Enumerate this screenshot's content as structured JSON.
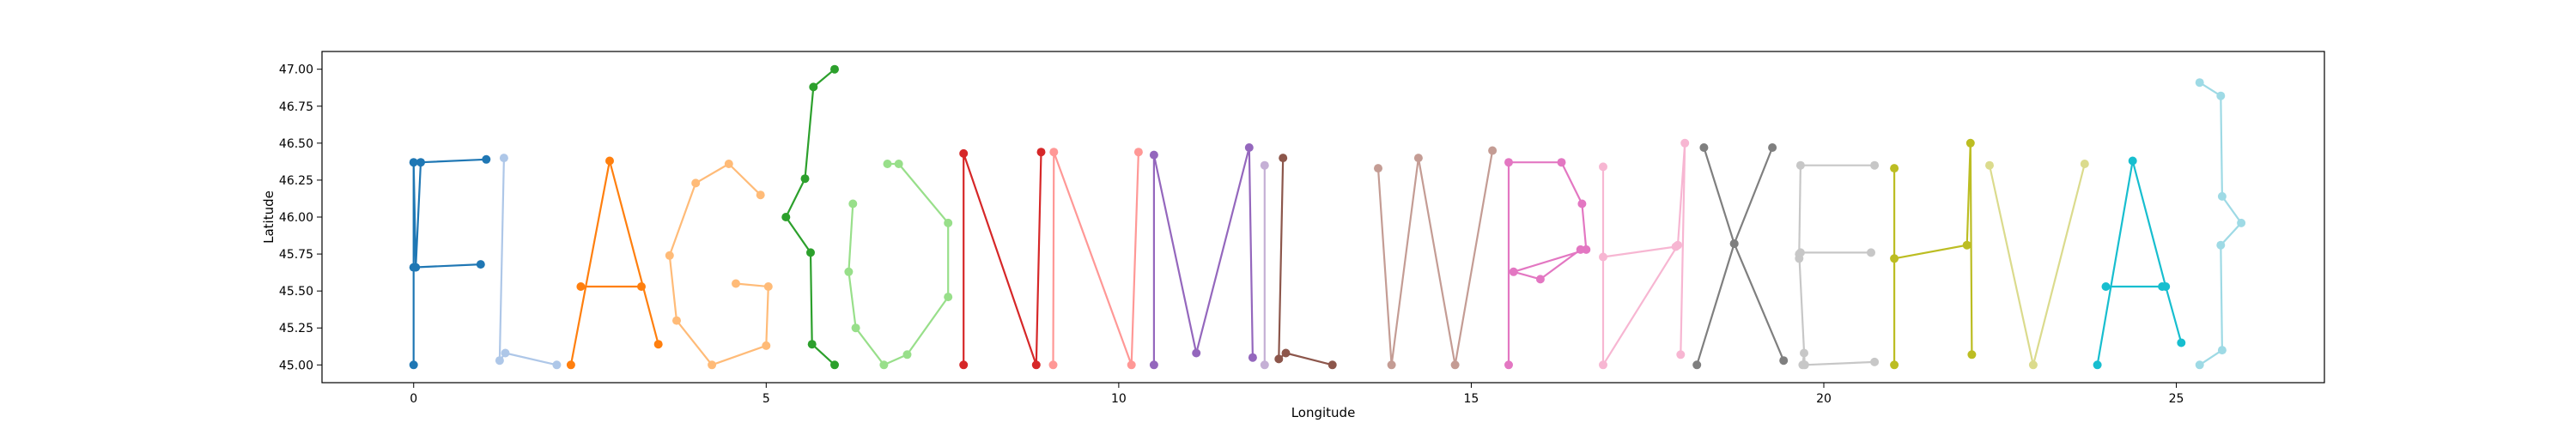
{
  "chart_data": {
    "type": "line",
    "title": "",
    "xlabel": "Longitude",
    "ylabel": "Latitude",
    "xlim": [
      -1.3,
      27.1
    ],
    "ylim": [
      44.88,
      47.12
    ],
    "xticks": [
      0,
      5,
      10,
      15,
      20,
      25
    ],
    "yticks": [
      45.0,
      45.25,
      45.5,
      45.75,
      46.0,
      46.25,
      46.5,
      46.75,
      47.0
    ],
    "grid": false,
    "legend": "none",
    "series": [
      {
        "color": "#1f77b4",
        "x": [
          0.0,
          0.0,
          0.03,
          0.1,
          1.03
        ],
        "y": [
          45.0,
          46.37,
          45.66,
          46.37,
          46.39
        ]
      },
      {
        "color": "#1f77b4",
        "x": [
          0.0,
          0.95
        ],
        "y": [
          45.66,
          45.68
        ]
      },
      {
        "color": "#aec7e8",
        "x": [
          1.28,
          1.22,
          1.3,
          2.03
        ],
        "y": [
          46.4,
          45.03,
          45.08,
          45.0
        ]
      },
      {
        "color": "#ff7f0e",
        "x": [
          2.23,
          2.78,
          3.47
        ],
        "y": [
          45.0,
          46.38,
          45.14
        ]
      },
      {
        "color": "#ff7f0e",
        "x": [
          2.37,
          3.23
        ],
        "y": [
          45.53,
          45.53
        ]
      },
      {
        "color": "#ffbb78",
        "x": [
          4.92,
          4.47,
          4.0,
          3.63,
          3.73,
          4.23,
          5.0,
          5.03,
          4.57
        ],
        "y": [
          46.15,
          46.36,
          46.23,
          45.74,
          45.3,
          45.0,
          45.13,
          45.53,
          45.55
        ]
      },
      {
        "color": "#2ca02c",
        "x": [
          5.97,
          5.67,
          5.55,
          5.28,
          5.63,
          5.65,
          5.97
        ],
        "y": [
          47.0,
          46.88,
          46.26,
          46.0,
          45.76,
          45.14,
          45.0
        ]
      },
      {
        "color": "#98df8a",
        "x": [
          6.72,
          6.88,
          7.58,
          7.58,
          7.0,
          6.67,
          6.27,
          6.17,
          6.23
        ],
        "y": [
          46.36,
          46.36,
          45.96,
          45.46,
          45.07,
          45.0,
          45.25,
          45.63,
          46.09
        ]
      },
      {
        "color": "#d62728",
        "x": [
          7.8,
          7.8,
          8.83,
          8.9
        ],
        "y": [
          45.0,
          46.43,
          45.0,
          46.44
        ]
      },
      {
        "color": "#ff9896",
        "x": [
          9.07,
          9.08,
          10.18,
          10.28
        ],
        "y": [
          45.0,
          46.44,
          45.0,
          46.44
        ]
      },
      {
        "color": "#9467bd",
        "x": [
          10.5,
          10.5,
          11.1,
          11.85,
          11.9
        ],
        "y": [
          45.0,
          46.42,
          45.08,
          46.47,
          45.05
        ]
      },
      {
        "color": "#c5b0d5",
        "x": [
          12.07,
          12.07
        ],
        "y": [
          46.35,
          45.0
        ]
      },
      {
        "color": "#8c564b",
        "x": [
          12.33,
          12.27,
          12.37,
          13.03
        ],
        "y": [
          46.4,
          45.04,
          45.08,
          45.0
        ]
      },
      {
        "color": "#c49c94",
        "x": [
          13.68,
          13.87,
          14.25,
          14.77,
          15.3
        ],
        "y": [
          46.33,
          45.0,
          46.4,
          45.0,
          46.45
        ]
      },
      {
        "color": "#e377c2",
        "x": [
          15.53,
          15.53,
          16.28,
          16.57,
          16.63,
          15.6,
          15.98,
          16.55
        ],
        "y": [
          45.0,
          46.37,
          46.37,
          46.09,
          45.78,
          45.63,
          45.58,
          45.78
        ]
      },
      {
        "color": "#f7b6d2",
        "x": [
          16.87,
          16.87,
          17.93,
          18.03,
          17.97
        ],
        "y": [
          46.34,
          45.0,
          45.81,
          46.5,
          45.07
        ]
      },
      {
        "color": "#f7b6d2",
        "x": [
          16.87,
          17.9
        ],
        "y": [
          45.73,
          45.8
        ]
      },
      {
        "color": "#7f7f7f",
        "x": [
          18.3,
          18.73,
          19.27
        ],
        "y": [
          46.47,
          45.82,
          46.47
        ]
      },
      {
        "color": "#7f7f7f",
        "x": [
          18.2,
          18.73,
          19.43
        ],
        "y": [
          45.0,
          45.82,
          45.03
        ]
      },
      {
        "color": "#c7c7c7",
        "x": [
          20.72,
          19.67,
          19.65,
          19.73,
          20.72
        ],
        "y": [
          46.35,
          46.35,
          45.75,
          45.0,
          45.02
        ]
      },
      {
        "color": "#c7c7c7",
        "x": [
          19.65,
          19.67,
          20.67
        ],
        "y": [
          45.72,
          45.76,
          45.76
        ]
      },
      {
        "color": "#c7c7c7",
        "x": [
          19.72,
          19.7
        ],
        "y": [
          45.08,
          45.0
        ]
      },
      {
        "color": "#bcbd22",
        "x": [
          21.0,
          21.0
        ],
        "y": [
          45.0,
          46.33
        ]
      },
      {
        "color": "#bcbd22",
        "x": [
          21.0,
          22.03,
          22.08,
          22.1
        ],
        "y": [
          45.72,
          45.81,
          46.5,
          45.07
        ]
      },
      {
        "color": "#dbdb8d",
        "x": [
          22.35,
          22.97,
          23.7
        ],
        "y": [
          46.35,
          45.0,
          46.36
        ]
      },
      {
        "color": "#17becf",
        "x": [
          23.88,
          24.38,
          24.85,
          25.07
        ],
        "y": [
          45.0,
          46.38,
          45.53,
          45.15
        ]
      },
      {
        "color": "#17becf",
        "x": [
          24.0,
          24.8
        ],
        "y": [
          45.53,
          45.53
        ]
      },
      {
        "color": "#9edae5",
        "x": [
          25.33,
          25.63,
          25.65,
          25.92,
          25.63,
          25.65,
          25.33
        ],
        "y": [
          46.91,
          46.82,
          46.14,
          45.96,
          45.81,
          45.1,
          45.0
        ]
      }
    ]
  }
}
